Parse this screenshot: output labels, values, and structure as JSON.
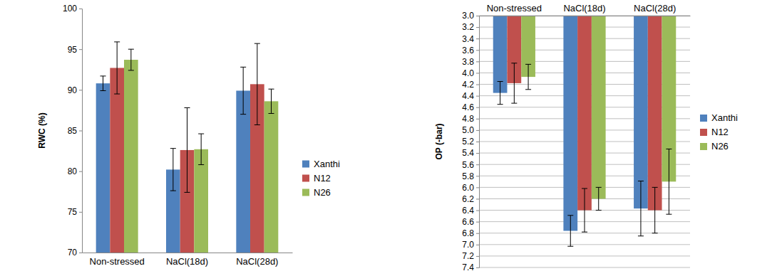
{
  "chart_data": [
    {
      "type": "bar",
      "y_label": "RWC (%)",
      "categories": [
        "Non-stressed",
        "NaCl(18d)",
        "NaCl(28d)"
      ],
      "series": [
        {
          "name": "Xanthi",
          "color": "#4f81bd",
          "values": [
            90.8,
            80.2,
            89.9
          ],
          "errors": [
            0.9,
            2.6,
            2.9
          ]
        },
        {
          "name": "N12",
          "color": "#c0504d",
          "values": [
            92.7,
            82.6,
            90.7
          ],
          "errors": [
            3.2,
            5.2,
            5.0
          ]
        },
        {
          "name": "N26",
          "color": "#9bbb59",
          "values": [
            93.7,
            82.7,
            88.6
          ],
          "errors": [
            1.3,
            1.9,
            1.5
          ]
        }
      ],
      "ylim": [
        70,
        100
      ],
      "yticks": [
        70,
        75,
        80,
        85,
        90,
        95,
        100
      ],
      "grid": false,
      "legend": "right"
    },
    {
      "type": "bar",
      "y_label": "OP (-bar)",
      "categories": [
        "Non-stressed",
        "NaCl(18d)",
        "NaCl(28d)"
      ],
      "series": [
        {
          "name": "Xanthi",
          "color": "#4f81bd",
          "values": [
            4.35,
            6.76,
            6.37
          ],
          "errors": [
            0.2,
            0.27,
            0.48
          ]
        },
        {
          "name": "N12",
          "color": "#c0504d",
          "values": [
            4.18,
            6.4,
            6.4
          ],
          "errors": [
            0.35,
            0.38,
            0.4
          ]
        },
        {
          "name": "N26",
          "color": "#9bbb59",
          "values": [
            4.07,
            6.2,
            5.9
          ],
          "errors": [
            0.22,
            0.2,
            0.57
          ]
        }
      ],
      "ylim": [
        7.4,
        3.0
      ],
      "yticks": [
        {
          "value": 3.0,
          "label": "3.0"
        },
        {
          "value": 3.2,
          "label": "3.2"
        },
        {
          "value": 3.4,
          "label": "3.4"
        },
        {
          "value": 3.6,
          "label": "3.6"
        },
        {
          "value": 3.8,
          "label": "3.8"
        },
        {
          "value": 4.0,
          "label": "4.0"
        },
        {
          "value": 4.2,
          "label": "4.2"
        },
        {
          "value": 4.4,
          "label": "4.4"
        },
        {
          "value": 4.6,
          "label": "4.6"
        },
        {
          "value": 4.8,
          "label": "4.8"
        },
        {
          "value": 5.0,
          "label": "5.0"
        },
        {
          "value": 5.2,
          "label": "5.2"
        },
        {
          "value": 5.4,
          "label": "5.4"
        },
        {
          "value": 5.6,
          "label": "5.6"
        },
        {
          "value": 5.8,
          "label": "5.8"
        },
        {
          "value": 6.0,
          "label": "6.0"
        },
        {
          "value": 6.2,
          "label": "6.2"
        },
        {
          "value": 6.4,
          "label": "6.4"
        },
        {
          "value": 6.6,
          "label": "6.6"
        },
        {
          "value": 6.8,
          "label": "6.8"
        },
        {
          "value": 7.0,
          "label": "7.0"
        },
        {
          "value": 7.2,
          "label": "7.2"
        },
        {
          "value": 7.4,
          "label": "7.4"
        }
      ],
      "grid": true,
      "legend": "right"
    }
  ]
}
